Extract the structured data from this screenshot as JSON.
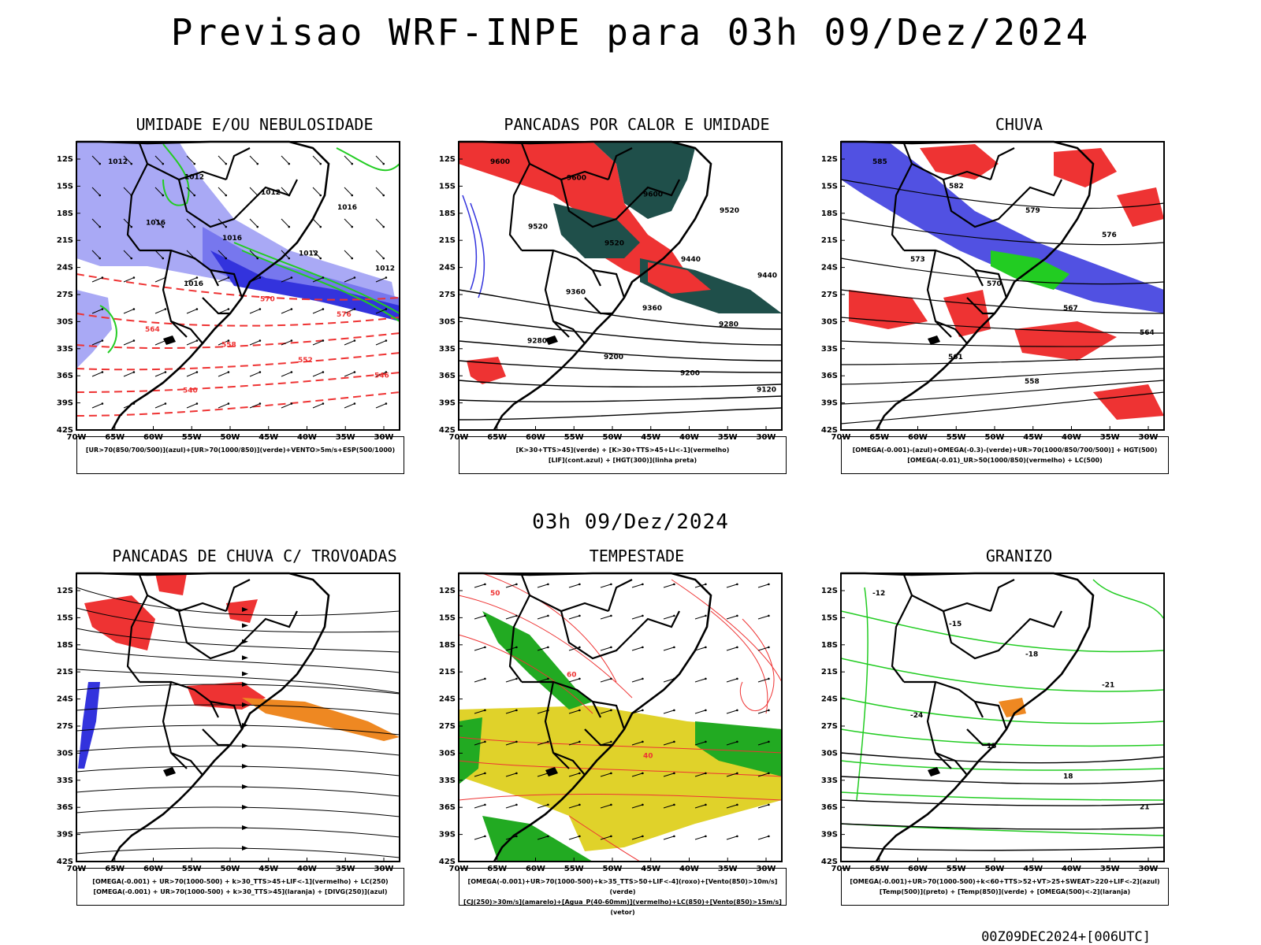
{
  "title": "Previsao WRF-INPE  para 03h 09/Dez/2024",
  "mid_label": "03h 09/Dez/2024",
  "footer": "00Z09DEC2024+[006UTC]",
  "axes": {
    "lat": [
      "12S",
      "15S",
      "18S",
      "21S",
      "24S",
      "27S",
      "30S",
      "33S",
      "36S",
      "39S",
      "42S"
    ],
    "lon": [
      "70W",
      "65W",
      "60W",
      "55W",
      "50W",
      "45W",
      "40W",
      "35W",
      "30W"
    ]
  },
  "panels": [
    {
      "title": "UMIDADE E/OU NEBULOSIDADE",
      "legend": [
        "[UR>70(850/700/500)](azul)+[UR>70(1000/850)](verde)+VENTO>5m/s+ESP(500/1000)"
      ],
      "contour_labels": [
        "1012",
        "1012",
        "1012",
        "1016",
        "1016",
        "1016",
        "1012",
        "1012",
        "1016",
        "570",
        "576",
        "564",
        "558",
        "552",
        "546",
        "540"
      ]
    },
    {
      "title": "PANCADAS POR CALOR E UMIDADE",
      "legend": [
        "[K>30+TTS>45](verde) + [K>30+TTS>45+LI<-1](vermelho)",
        "[LIF](cont.azul) + [HGT(300)](linha preta)"
      ],
      "contour_labels": [
        "9600",
        "9600",
        "9600",
        "9520",
        "9520",
        "9520",
        "9440",
        "9440",
        "9360",
        "9360",
        "9280",
        "9280",
        "9200",
        "9200",
        "9120"
      ]
    },
    {
      "title": "CHUVA",
      "legend": [
        "[OMEGA(-0.001)-(azul)+OMEGA(-0.3)-(verde)+UR>70(1000/850/700/500)] + HGT(500)",
        "[OMEGA(-0.01)_UR>50(1000/850)(vermelho) + LC(500)"
      ],
      "contour_labels": [
        "585",
        "582",
        "579",
        "576",
        "573",
        "570",
        "567",
        "564",
        "561",
        "558"
      ]
    },
    {
      "title": "PANCADAS DE CHUVA C/ TROVOADAS",
      "legend": [
        "[OMEGA(-0.001) + UR>70(1000-500) + k>30_TTS>45+LIF<-1](vermelho) + LC(250)",
        "[OMEGA(-0.001) + UR>70(1000-500) + k>30_TTS>45](laranja) + [DIVG(250)](azul)"
      ],
      "contour_labels": []
    },
    {
      "title": "TEMPESTADE",
      "legend": [
        "[OMEGA(-0.001)+UR>70(1000-500)+k>35_TTS>50+LIF<-4](roxo)+[Vento(850)>10m/s](verde)",
        "[CJ(250)>30m/s](amarelo)+[Agua_P(40-60mm)](vermelho)+LC(850)+[Vento(850)>15m/s](vetor)"
      ],
      "contour_labels": [
        "50",
        "60",
        "40"
      ]
    },
    {
      "title": "GRANIZO",
      "legend": [
        "[OMEGA(-0.001)+UR>70(1000-500)+k<60+TTS>52+VT>25+SWEAT>220+LIF<-2](azul)",
        "[Temp(500)](preto) + [Temp(850)](verde) + [OMEGA(500)<-2](laranja)"
      ],
      "contour_labels": [
        "-12",
        "-15",
        "-18",
        "-21",
        "-24",
        "15",
        "18",
        "21"
      ]
    }
  ],
  "colors": {
    "blue_light": "#a9a9f5",
    "blue_mid": "#7777ee",
    "blue_dark": "#3333dd",
    "green": "#22cc22",
    "red": "#ee3333",
    "dark_teal": "#1f4f4a",
    "orange": "#ee8822",
    "yellow": "#e0d22a"
  }
}
